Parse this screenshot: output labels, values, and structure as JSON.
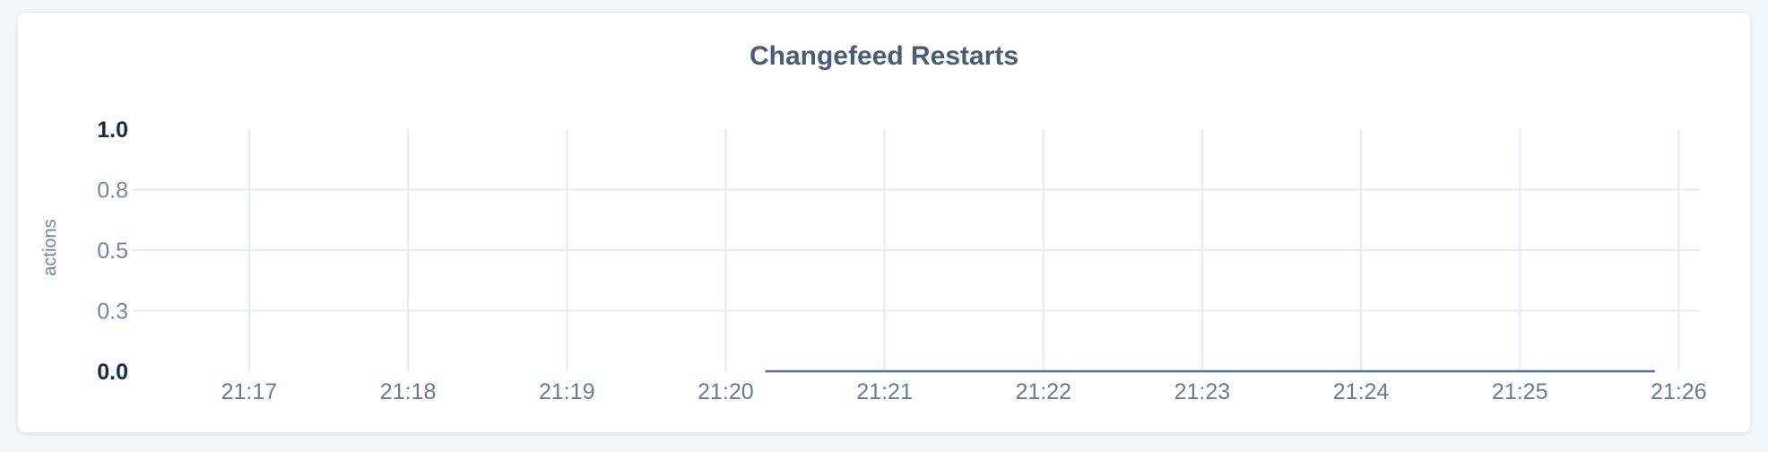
{
  "page": {
    "background_color": "#f4f5f9",
    "card_background_color": "#ffffff",
    "card_border_color": "#e8eaef"
  },
  "chart_data": {
    "type": "line",
    "title": "Changefeed Restarts",
    "title_color": "#4c5b76",
    "ylabel": "actions",
    "ylabel_color": "#74839c",
    "legend": "none",
    "grid": {
      "enabled": true,
      "color": "#e7eaf2",
      "horizontal_gridlines_at_values": [
        0.75,
        0.5,
        0.25
      ],
      "vertical_gridlines": "at every x tick"
    },
    "x_axis": {
      "domain": [
        "21:16:16",
        "21:26:08"
      ],
      "ticks": [
        "21:17",
        "21:18",
        "21:19",
        "21:20",
        "21:21",
        "21:22",
        "21:23",
        "21:24",
        "21:25",
        "21:26"
      ],
      "tick_label_color": "#6b7a93"
    },
    "y_axis": {
      "lim": [
        0.0,
        1.0
      ],
      "ticks": [
        {
          "label": "1.0",
          "value": 1.0,
          "emphasis": true,
          "gridline": false
        },
        {
          "label": "0.8",
          "value": 0.75,
          "emphasis": false,
          "gridline": true
        },
        {
          "label": "0.5",
          "value": 0.5,
          "emphasis": false,
          "gridline": true
        },
        {
          "label": "0.3",
          "value": 0.25,
          "emphasis": false,
          "gridline": true
        },
        {
          "label": "0.0",
          "value": 0.0,
          "emphasis": true,
          "gridline": false
        }
      ],
      "tick_label_color": "#76839b",
      "tick_label_emphasis_color": "#1b2a4b"
    },
    "series": [
      {
        "name": "changefeed-restarts",
        "color": "#5f6b81",
        "stroke_width": 2.5,
        "points": [
          {
            "t": "21:20:15",
            "v": 0.0
          },
          {
            "t": "21:25:51",
            "v": 0.0
          }
        ],
        "note": "flat line at 0 actions for the visible data window"
      }
    ]
  }
}
